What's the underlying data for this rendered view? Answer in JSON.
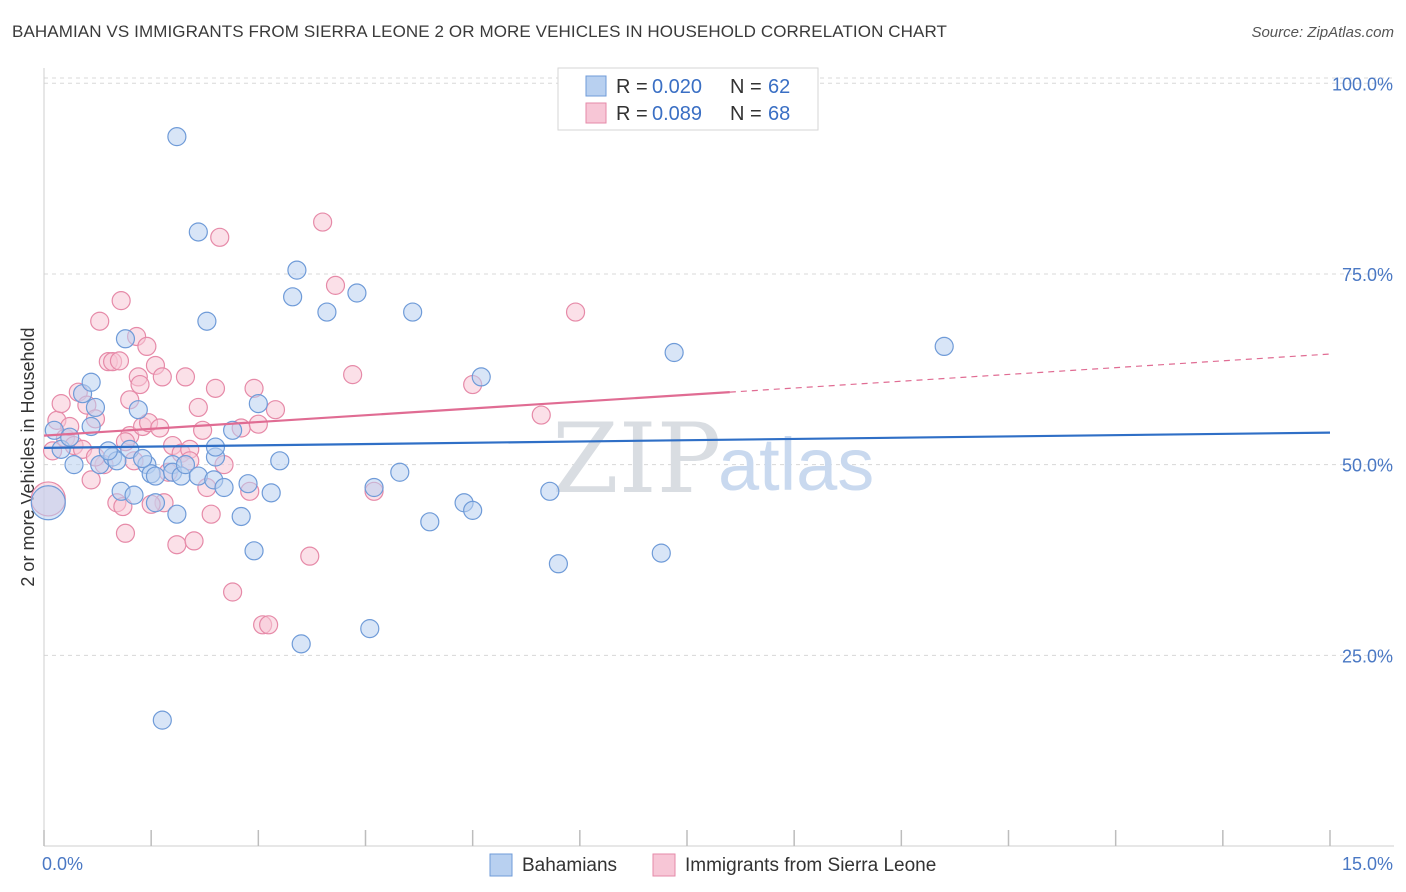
{
  "title": "BAHAMIAN VS IMMIGRANTS FROM SIERRA LEONE 2 OR MORE VEHICLES IN HOUSEHOLD CORRELATION CHART",
  "source": "Source: ZipAtlas.com",
  "colors": {
    "blue_fill": "#b8d0f0",
    "blue_stroke": "#6f9bd8",
    "blue_line": "#2f6fc6",
    "pink_fill": "#f7c6d6",
    "pink_stroke": "#e68aa8",
    "pink_line": "#e06c93",
    "grid": "#d8d8d8",
    "tick_text": "#4a78c4"
  },
  "legend": {
    "rows": [
      {
        "r_label": "R = ",
        "r_value": "0.020",
        "n_label": "N = ",
        "n_value": "62"
      },
      {
        "r_label": "R = ",
        "r_value": "0.089",
        "n_label": "N = ",
        "n_value": "68"
      }
    ]
  },
  "watermark": {
    "zip": "ZIP",
    "atlas": "atlas"
  },
  "chart_data": {
    "type": "scatter",
    "xlabel": "",
    "ylabel": "2 or more Vehicles in Household",
    "xlim": [
      0,
      15
    ],
    "ylim": [
      0,
      102
    ],
    "x_tick_labels": [
      {
        "value": 0,
        "label": "0.0%"
      },
      {
        "value": 15,
        "label": "15.0%"
      }
    ],
    "y_tick_labels": [
      {
        "value": 25,
        "label": "25.0%"
      },
      {
        "value": 50,
        "label": "50.0%"
      },
      {
        "value": 75,
        "label": "75.0%"
      },
      {
        "value": 100,
        "label": "100.0%"
      }
    ],
    "grid": true,
    "legend_position": "top-center",
    "series": [
      {
        "name": "Bahamians",
        "color": "#6f9bd8",
        "trend": {
          "x": [
            0,
            15
          ],
          "y": [
            52.2,
            54.2
          ],
          "solid_until": 15
        },
        "points": [
          [
            0.05,
            45.0
          ],
          [
            0.12,
            54.5
          ],
          [
            0.2,
            52.0
          ],
          [
            0.3,
            53.6
          ],
          [
            0.35,
            50.0
          ],
          [
            0.45,
            59.3
          ],
          [
            0.55,
            60.8
          ],
          [
            0.6,
            57.5
          ],
          [
            0.65,
            50.0
          ],
          [
            0.8,
            51.0
          ],
          [
            0.85,
            50.5
          ],
          [
            0.9,
            46.5
          ],
          [
            0.95,
            66.5
          ],
          [
            1.0,
            52.0
          ],
          [
            1.05,
            46.0
          ],
          [
            1.1,
            57.2
          ],
          [
            1.2,
            50.0
          ],
          [
            1.25,
            48.8
          ],
          [
            1.3,
            48.5
          ],
          [
            1.3,
            45.0
          ],
          [
            1.5,
            50.0
          ],
          [
            1.5,
            49.0
          ],
          [
            1.55,
            43.5
          ],
          [
            1.6,
            48.5
          ],
          [
            1.65,
            50.0
          ],
          [
            1.8,
            48.5
          ],
          [
            1.8,
            80.5
          ],
          [
            1.9,
            68.8
          ],
          [
            1.98,
            48.0
          ],
          [
            2.0,
            51.0
          ],
          [
            2.1,
            47.0
          ],
          [
            2.2,
            54.5
          ],
          [
            2.3,
            43.2
          ],
          [
            2.38,
            47.5
          ],
          [
            2.45,
            38.7
          ],
          [
            2.5,
            58.0
          ],
          [
            2.65,
            46.3
          ],
          [
            2.75,
            50.5
          ],
          [
            2.9,
            72.0
          ],
          [
            2.95,
            75.5
          ],
          [
            3.0,
            26.5
          ],
          [
            3.3,
            70.0
          ],
          [
            3.65,
            72.5
          ],
          [
            3.8,
            28.5
          ],
          [
            3.85,
            47.0
          ],
          [
            4.15,
            49.0
          ],
          [
            4.3,
            70.0
          ],
          [
            4.5,
            42.5
          ],
          [
            4.9,
            45.0
          ],
          [
            5.0,
            44.0
          ],
          [
            5.1,
            61.5
          ],
          [
            5.9,
            46.5
          ],
          [
            6.0,
            37.0
          ],
          [
            7.2,
            38.4
          ],
          [
            7.35,
            64.7
          ],
          [
            10.5,
            65.5
          ],
          [
            1.55,
            93.0
          ],
          [
            1.38,
            16.5
          ],
          [
            0.75,
            51.8
          ],
          [
            1.15,
            50.8
          ],
          [
            0.55,
            55.0
          ],
          [
            2.0,
            52.3
          ]
        ]
      },
      {
        "name": "Immigrants from Sierra Leone",
        "color": "#e68aa8",
        "trend": {
          "x": [
            0,
            15
          ],
          "y": [
            53.8,
            64.5
          ],
          "solid_until": 8
        },
        "points": [
          [
            0.05,
            45.5
          ],
          [
            0.1,
            51.8
          ],
          [
            0.15,
            55.8
          ],
          [
            0.2,
            58.0
          ],
          [
            0.25,
            53.5
          ],
          [
            0.3,
            55.0
          ],
          [
            0.35,
            52.5
          ],
          [
            0.4,
            59.5
          ],
          [
            0.45,
            52.0
          ],
          [
            0.5,
            57.8
          ],
          [
            0.55,
            48.0
          ],
          [
            0.6,
            56.0
          ],
          [
            0.65,
            68.8
          ],
          [
            0.7,
            50.0
          ],
          [
            0.75,
            63.5
          ],
          [
            0.8,
            63.5
          ],
          [
            0.85,
            45.0
          ],
          [
            0.88,
            63.6
          ],
          [
            0.9,
            71.5
          ],
          [
            0.92,
            44.5
          ],
          [
            0.95,
            41.0
          ],
          [
            1.0,
            53.8
          ],
          [
            1.05,
            50.5
          ],
          [
            1.08,
            66.8
          ],
          [
            1.1,
            61.5
          ],
          [
            1.12,
            60.5
          ],
          [
            1.15,
            55.0
          ],
          [
            1.2,
            65.5
          ],
          [
            1.22,
            55.5
          ],
          [
            1.3,
            63.0
          ],
          [
            1.35,
            54.8
          ],
          [
            1.38,
            61.5
          ],
          [
            1.4,
            45.0
          ],
          [
            1.45,
            49.0
          ],
          [
            1.5,
            52.5
          ],
          [
            1.55,
            39.5
          ],
          [
            1.6,
            51.5
          ],
          [
            1.65,
            61.5
          ],
          [
            1.7,
            52.0
          ],
          [
            1.75,
            40.0
          ],
          [
            1.8,
            57.5
          ],
          [
            1.85,
            54.5
          ],
          [
            1.9,
            47.0
          ],
          [
            1.95,
            43.5
          ],
          [
            2.0,
            60.0
          ],
          [
            2.05,
            79.8
          ],
          [
            2.1,
            50.0
          ],
          [
            2.2,
            33.3
          ],
          [
            2.3,
            54.8
          ],
          [
            2.4,
            46.5
          ],
          [
            2.45,
            60.0
          ],
          [
            2.5,
            55.3
          ],
          [
            2.55,
            29.0
          ],
          [
            2.62,
            29.0
          ],
          [
            2.7,
            57.2
          ],
          [
            3.1,
            38.0
          ],
          [
            3.25,
            81.8
          ],
          [
            3.4,
            73.5
          ],
          [
            3.6,
            61.8
          ],
          [
            3.85,
            46.5
          ],
          [
            5.0,
            60.5
          ],
          [
            5.8,
            56.5
          ],
          [
            6.2,
            70.0
          ],
          [
            1.25,
            44.8
          ],
          [
            0.6,
            51.0
          ],
          [
            1.0,
            58.5
          ],
          [
            1.7,
            50.5
          ],
          [
            0.95,
            53.0
          ]
        ]
      }
    ]
  },
  "bottom_legend": [
    {
      "label": "Bahamians"
    },
    {
      "label": "Immigrants from Sierra Leone"
    }
  ]
}
